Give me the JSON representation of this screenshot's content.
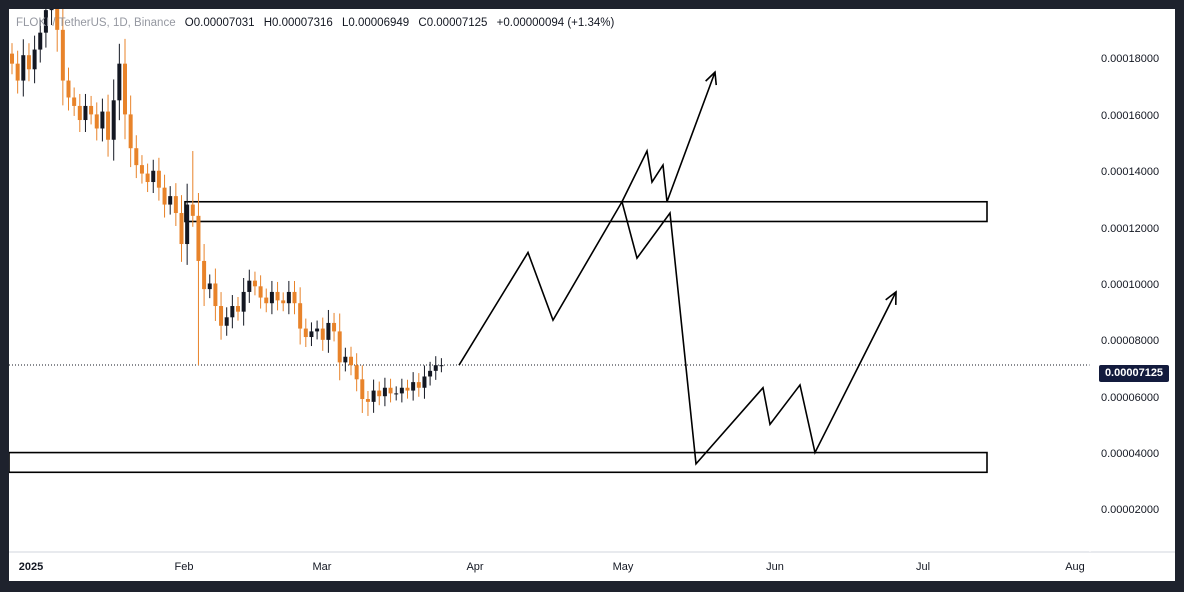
{
  "legend": {
    "pair": "FLOKI / TetherUS",
    "interval": "1D",
    "exchange": "Binance",
    "open_key": "O",
    "open": "0.00007031",
    "high_key": "H",
    "high": "0.00007316",
    "low_key": "L",
    "low": "0.00006949",
    "close_key": "C",
    "close": "0.00007125",
    "change": "+0.00000094 (+1.34%)"
  },
  "price_scale": {
    "ticks": [
      "0.00018000",
      "0.00016000",
      "0.00014000",
      "0.00012000",
      "0.00010000",
      "0.00008000",
      "0.00006000",
      "0.00004000",
      "0.00002000"
    ],
    "current_price_label": "0.00007125"
  },
  "time_scale": {
    "ticks": [
      "2025",
      "Feb",
      "Mar",
      "Apr",
      "May",
      "Jun",
      "Jul",
      "Aug"
    ]
  },
  "colors": {
    "up": "#131722",
    "down": "#e8832a",
    "frame": "#1e222d",
    "price_tag": "#131b3d"
  },
  "chart_data": {
    "type": "candlestick",
    "symbol": "FLOKI / TetherUS",
    "interval": "1D",
    "exchange": "Binance",
    "last_close": 7.125e-05,
    "zones": [
      {
        "low": 0.000122,
        "high": 0.000129
      },
      {
        "low": 3.3e-05,
        "high": 4e-05
      }
    ],
    "closes": [
      0.000178,
      0.000172,
      0.000181,
      0.000176,
      0.000183,
      0.000189,
      0.000197,
      0.000205,
      0.00019,
      0.000172,
      0.000166,
      0.000163,
      0.000158,
      0.000163,
      0.00016,
      0.000155,
      0.000161,
      0.000151,
      0.000165,
      0.000178,
      0.00016,
      0.000148,
      0.000142,
      0.000139,
      0.000136,
      0.00014,
      0.000134,
      0.000128,
      0.000131,
      0.000125,
      0.000114,
      0.000128,
      0.000124,
      0.000108,
      9.8e-05,
      0.0001,
      9.2e-05,
      8.5e-05,
      8.8e-05,
      9.2e-05,
      9e-05,
      9.7e-05,
      0.000101,
      9.9e-05,
      9.5e-05,
      9.3e-05,
      9.7e-05,
      9.4e-05,
      9.3e-05,
      9.7e-05,
      9.3e-05,
      8.4e-05,
      8.1e-05,
      8.3e-05,
      8.4e-05,
      8e-05,
      8.6e-05,
      8.3e-05,
      7.2e-05,
      7.4e-05,
      7.1e-05,
      6.6e-05,
      5.9e-05,
      5.8e-05,
      6.2e-05,
      6e-05,
      6.3e-05,
      6.1e-05,
      6.1e-05,
      6.3e-05,
      6.2e-05,
      6.5e-05,
      6.3e-05,
      6.7e-05,
      6.9e-05,
      7.1e-05,
      7.1e-05
    ],
    "projection_down": [
      7.1e-05,
      0.000111,
      8.7e-05,
      0.000129,
      0.000109,
      0.000125,
      3.6e-05,
      6.3e-05,
      5e-05,
      6.4e-05,
      4e-05,
      9.7e-05
    ],
    "projection_up": [
      0.000129,
      0.000147,
      0.000136,
      0.000142,
      0.000129,
      0.000175
    ]
  }
}
